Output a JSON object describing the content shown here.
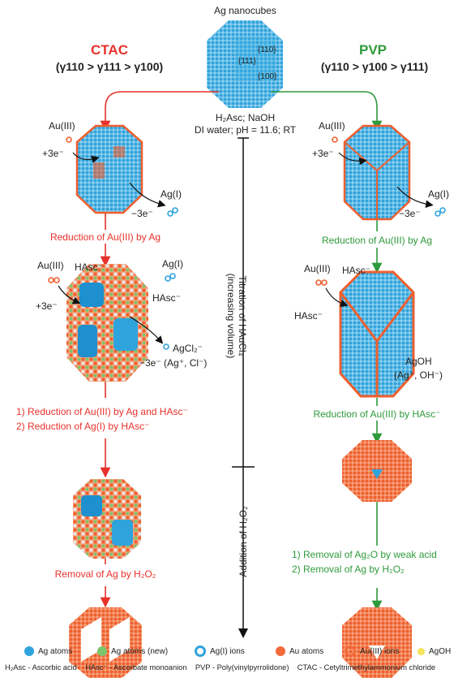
{
  "top": {
    "title": "Ag nanocubes",
    "facets": {
      "f111": "{111}",
      "f110": "{110}",
      "f100": "{100}"
    },
    "conditions_line1": "H₂Asc; NaOH",
    "conditions_line2": "DI water; pH = 11.6; RT"
  },
  "left": {
    "header": "CTAC",
    "inequality": "(γ110 > γ111 > γ100)",
    "step1": {
      "au3": "Au(III)",
      "plus3e": "+3e⁻",
      "agi": "Ag(I)",
      "minus3e": "−3e⁻"
    },
    "label1": "Reduction of Au(III) by Ag",
    "step2": {
      "au3": "Au(III)",
      "hasc1": "HAsc⁻",
      "agi": "Ag(I)",
      "hasc2": "HAsc⁻",
      "plus3e": "+3e⁻",
      "agcl": "AgCl₂⁻",
      "minus3e": "−3e⁻ (Ag⁺, Cl⁻)"
    },
    "label2a": "1)  Reduction of Au(III) by Ag and HAsc⁻",
    "label2b": "2)  Reduction of Ag(I) by HAsc⁻",
    "label3": "Removal of Ag by H₂O₂"
  },
  "right": {
    "header": "PVP",
    "inequality": "(γ110 > γ100 > γ111)",
    "step1": {
      "au3": "Au(III)",
      "plus3e": "+3e⁻",
      "agi": "Ag(I)",
      "minus3e": "−3e⁻"
    },
    "label1": "Reduction of Au(III) by Ag",
    "step2": {
      "au3": "Au(III)",
      "hasc1": "HAsc⁻",
      "hasc2": "HAsc⁻",
      "agoh": "AgOH",
      "agoh_ions": "(Ag⁺, OH⁻)"
    },
    "label2": "Reduction of Au(III) by HAsc⁻",
    "label3a": "1)  Removal of Ag₂O by weak acid",
    "label3b": "2)  Removal of Ag by H₂O₂"
  },
  "middle": {
    "titration_line1": "Titration of HAuCl₄",
    "titration_line2": "(increasing volume)",
    "addition": "Addition of H₂O₂"
  },
  "legend": {
    "ag_atoms": "Ag atoms",
    "ag_atoms_new": "Ag atoms (new)",
    "agi_ions": "Ag(I) ions",
    "au_atoms": "Au atoms",
    "au3_ions": "Au(III) ions",
    "agoh": "AgOH"
  },
  "abbreviations": {
    "h2asc": "H₂Asc - Ascorbic acid",
    "hasc": "HAsc⁻ - Ascorbate monoanion",
    "pvp": "PVP - Poly(vinylpyrrolidone)",
    "ctac": "CTAC - Cetyltrimethylammonium chloride"
  },
  "colors": {
    "red": "#e8312b",
    "green": "#2e9a3b",
    "ag": "#2fa3dc",
    "au": "#f26a3a",
    "ag_new": "#7ac66b",
    "agoh": "#f3e45a"
  }
}
